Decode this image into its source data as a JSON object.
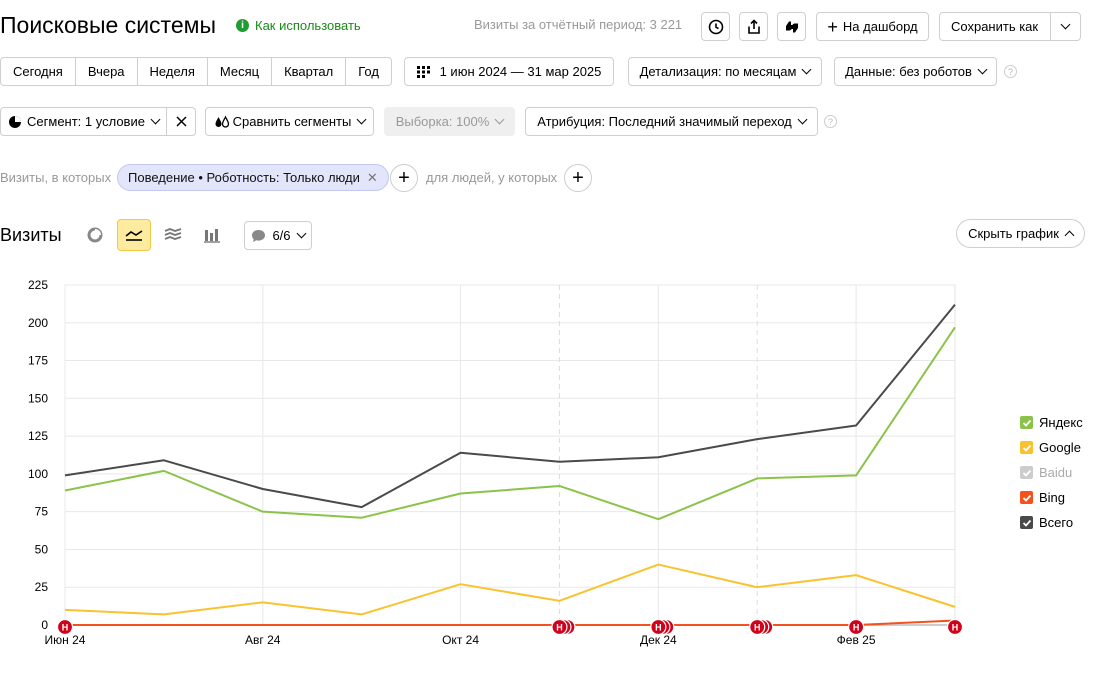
{
  "header": {
    "title": "Поисковые системы",
    "howto_label": "Как использовать",
    "visits_period": "Визиты за отчётный период: 3 221",
    "to_dashboard_label": "На дашборд",
    "save_as_label": "Сохранить как"
  },
  "period_tabs": [
    "Сегодня",
    "Вчера",
    "Неделя",
    "Месяц",
    "Квартал",
    "Год"
  ],
  "date_range": "1 июн 2024 — 31 мар 2025",
  "detail_select": "Детализация: по месяцам",
  "data_select": "Данные: без роботов",
  "segment": {
    "label": "Сегмент: 1 условие",
    "compare_label": "Сравнить сегменты",
    "sample_label": "Выборка: 100%",
    "attribution_label": "Атрибуция: Последний значимый переход"
  },
  "filters": {
    "prefix": "Визиты, в которых",
    "condition": "Поведение • Роботность: Только люди",
    "people_label": "для людей, у которых"
  },
  "chart_header": {
    "title": "Визиты",
    "annotations_count": "6/6",
    "hide_chart_label": "Скрыть график"
  },
  "chart_data": {
    "type": "line",
    "ylim": [
      0,
      225
    ],
    "yticks": [
      0,
      25,
      50,
      75,
      100,
      125,
      150,
      175,
      200,
      225
    ],
    "x_tick_labels": [
      "Июн 24",
      "Авг 24",
      "Окт 24",
      "Дек 24",
      "Фев 25"
    ],
    "x": [
      "2024-06",
      "2024-07",
      "2024-08",
      "2024-09",
      "2024-10",
      "2024-11",
      "2024-12",
      "2025-01",
      "2025-02",
      "2025-03"
    ],
    "series": [
      {
        "name": "Яндекс",
        "color": "#8bc34a",
        "values": [
          89,
          102,
          75,
          71,
          87,
          92,
          70,
          97,
          99,
          197
        ]
      },
      {
        "name": "Google",
        "color": "#f9c22e",
        "values": [
          10,
          7,
          15,
          7,
          27,
          16,
          40,
          25,
          33,
          12
        ]
      },
      {
        "name": "Baidu",
        "color": "#cccccc",
        "values": [
          0,
          0,
          0,
          0,
          0,
          0,
          0,
          0,
          0,
          0
        ]
      },
      {
        "name": "Bing",
        "color": "#f4511e",
        "values": [
          0,
          0,
          0,
          0,
          0,
          0,
          0,
          0,
          0,
          3
        ]
      },
      {
        "name": "Всего",
        "color": "#4a4a4a",
        "values": [
          99,
          109,
          90,
          78,
          114,
          108,
          111,
          123,
          132,
          212
        ]
      }
    ],
    "annotation_markers": [
      {
        "x": "2024-06",
        "label": "H"
      },
      {
        "x": "2024-11",
        "label": "H"
      },
      {
        "x": "2024-12",
        "label": "H"
      },
      {
        "x": "2025-01",
        "label": "H"
      },
      {
        "x": "2025-02",
        "label": "H"
      },
      {
        "x": "2025-03",
        "label": "H"
      }
    ]
  }
}
